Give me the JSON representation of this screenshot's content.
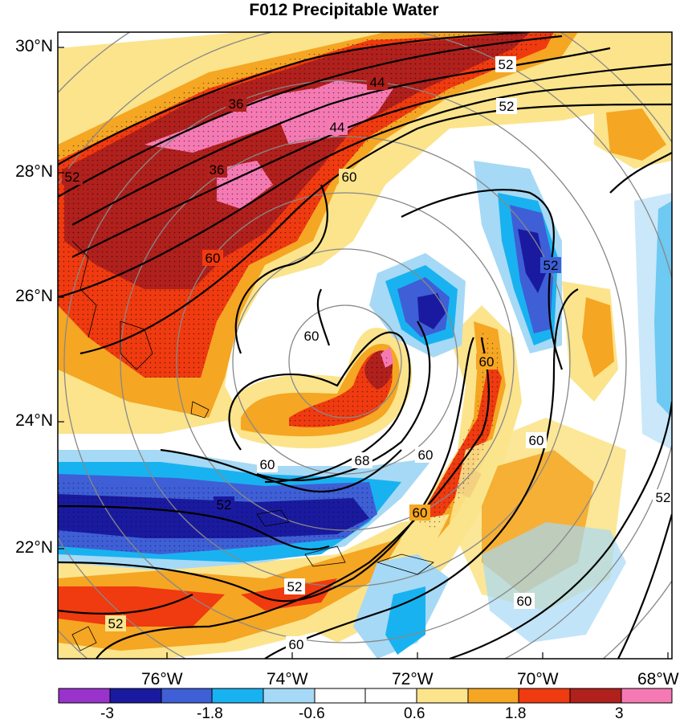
{
  "title": "F012 Precipitable Water",
  "axes": {
    "lat_labels": [
      "30°N",
      "28°N",
      "26°N",
      "24°N",
      "22°N"
    ],
    "lon_labels": [
      "76°W",
      "74°W",
      "72°W",
      "70°W",
      "68°W"
    ]
  },
  "contour_labels": [
    "36",
    "44",
    "52",
    "52",
    "36",
    "44",
    "52",
    "60",
    "60",
    "52",
    "60",
    "60",
    "60",
    "60",
    "68",
    "60",
    "52",
    "52",
    "52",
    "60",
    "60",
    "60",
    "52"
  ],
  "colorbar": {
    "labels": [
      "-3",
      "-1.8",
      "-0.6",
      "0.6",
      "1.8",
      "3"
    ],
    "colors": [
      "#9933cc",
      "#1a1aa0",
      "#3e5fd6",
      "#19b2f0",
      "#a6d9f5",
      "#ffffff",
      "#ffffff",
      "#fbe48c",
      "#f5a623",
      "#f03a0f",
      "#b0201c",
      "#f57ab4"
    ]
  },
  "colors": {
    "dark_red": "#b0201c",
    "red": "#f03a0f",
    "orange": "#f5a623",
    "yellow": "#fbe48c",
    "pink": "#f57ab4",
    "dark_blue": "#1a1aa0",
    "blue": "#3e5fd6",
    "cyan": "#19b2f0",
    "light_blue": "#a6d9f5"
  }
}
